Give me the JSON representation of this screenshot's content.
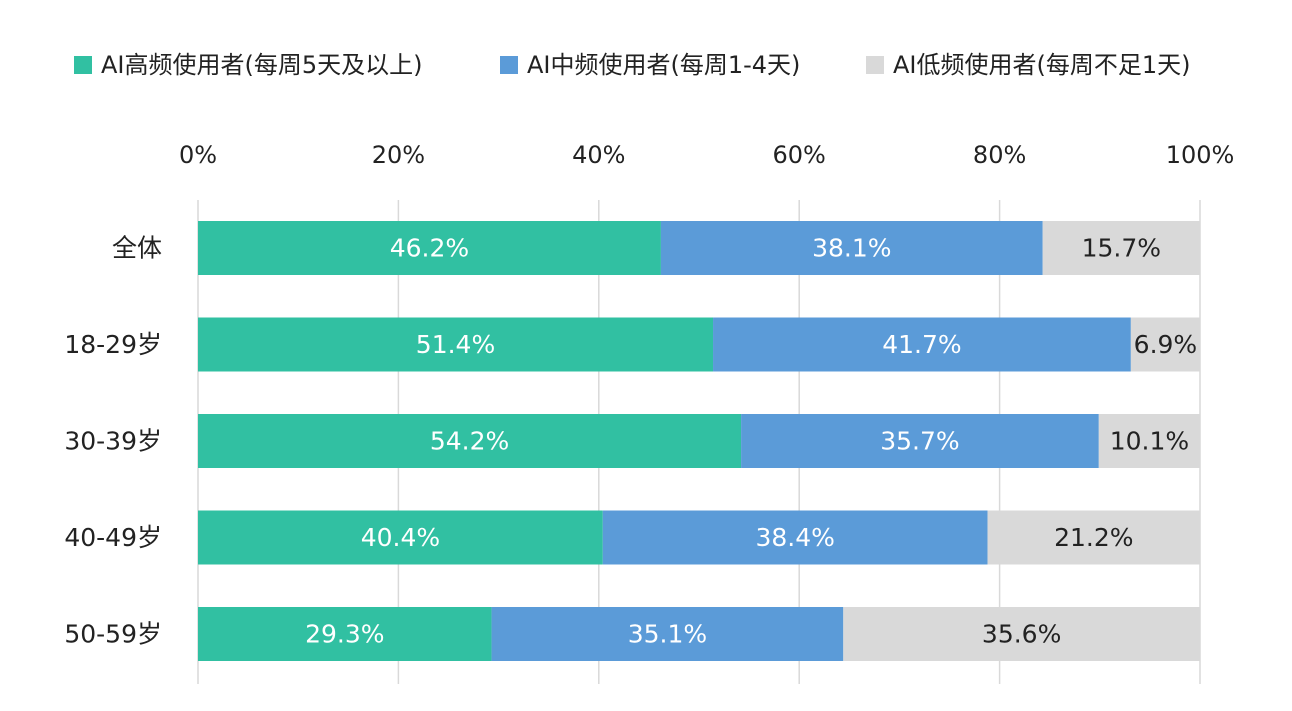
{
  "chart_data": {
    "type": "bar",
    "orientation": "horizontal",
    "stacked": true,
    "percent_stacked": true,
    "categories": [
      "全体",
      "18-29岁",
      "30-39岁",
      "40-49岁",
      "50-59岁"
    ],
    "series": [
      {
        "name": "AI高频使用者(每周5天及以上)",
        "values": [
          46.2,
          51.4,
          54.2,
          40.4,
          29.3
        ],
        "labels": [
          "46.2%",
          "51.4%",
          "54.2%",
          "40.4%",
          "29.3%"
        ],
        "color": "#31c0a2",
        "label_color": "#ffffff"
      },
      {
        "name": "AI中频使用者(每周1-4天)",
        "values": [
          38.1,
          41.7,
          35.7,
          38.4,
          35.1
        ],
        "labels": [
          "38.1%",
          "41.7%",
          "35.7%",
          "38.4%",
          "35.1%"
        ],
        "color": "#5b9bd8",
        "label_color": "#ffffff"
      },
      {
        "name": "AI低频使用者(每周不足1天)",
        "values": [
          15.7,
          6.9,
          10.1,
          21.2,
          35.6
        ],
        "labels": [
          "15.7%",
          "6.9%",
          "10.1%",
          "21.2%",
          "35.6%"
        ],
        "color": "#d9d9d9",
        "label_color": "#222222"
      }
    ],
    "x_ticks": [
      {
        "value": 0,
        "label": "0%"
      },
      {
        "value": 20,
        "label": "20%"
      },
      {
        "value": 40,
        "label": "40%"
      },
      {
        "value": 60,
        "label": "60%"
      },
      {
        "value": 80,
        "label": "80%"
      },
      {
        "value": 100,
        "label": "100%"
      }
    ],
    "xlim": [
      0,
      100
    ],
    "axis_position": "top",
    "gridlines": true,
    "gridline_color": "#d9d9d9",
    "legend_position": "top"
  }
}
